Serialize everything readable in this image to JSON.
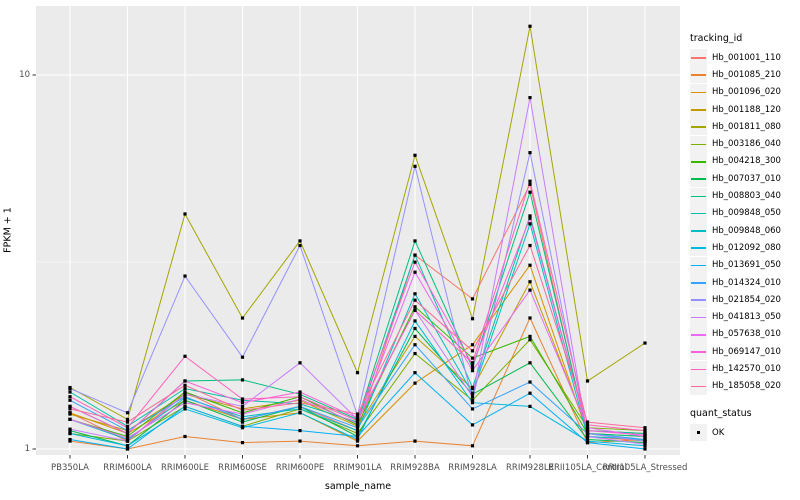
{
  "chart_data": {
    "type": "line",
    "title": "",
    "xlabel": "sample_name",
    "ylabel": "FPKM + 1",
    "yscale": "log10",
    "ylim": [
      0.96,
      15.3
    ],
    "grid": true,
    "legend_position": "right",
    "y_tick_labels": [
      "10",
      "1"
    ],
    "y_tick_values": [
      10,
      1
    ],
    "y_minor_tick_values": [
      3.1623
    ],
    "categories": [
      "PB350LA",
      "RRIM600LA",
      "RRIM600LE",
      "RRIM600SE",
      "RRIM600PE",
      "RRIM901LA",
      "RRIM928BA",
      "RRIM928LA",
      "RRIM928LE",
      "RRII105LA_Control",
      "RRII105LA_Stressed"
    ],
    "point_marker": {
      "shape": "filled-square",
      "color": "#000000",
      "size": 3.2
    },
    "series": [
      {
        "name": "Hb_001001_110",
        "color": "#F8766D",
        "values": [
          1.25,
          1.05,
          1.42,
          1.2,
          1.3,
          1.12,
          3.3,
          2.52,
          5.1,
          1.08,
          1.05
        ]
      },
      {
        "name": "Hb_001085_210",
        "color": "#EA8331",
        "values": [
          1.05,
          1.0,
          1.08,
          1.04,
          1.05,
          1.02,
          1.05,
          1.02,
          2.24,
          1.04,
          1.06
        ]
      },
      {
        "name": "Hb_001096_020",
        "color": "#D89000",
        "values": [
          1.25,
          1.1,
          1.35,
          1.2,
          1.25,
          1.05,
          1.5,
          1.9,
          3.1,
          1.1,
          1.08
        ]
      },
      {
        "name": "Hb_001188_120",
        "color": "#C09B00",
        "values": [
          1.24,
          1.12,
          1.4,
          1.28,
          1.35,
          1.15,
          2.0,
          1.45,
          2.8,
          1.12,
          1.1
        ]
      },
      {
        "name": "Hb_001811_080",
        "color": "#A3A500",
        "values": [
          1.46,
          1.2,
          4.25,
          2.24,
          3.6,
          1.6,
          6.1,
          2.23,
          13.5,
          1.52,
          1.92
        ]
      },
      {
        "name": "Hb_003186_040",
        "color": "#7CAE00",
        "values": [
          1.1,
          1.05,
          1.3,
          1.15,
          1.28,
          1.1,
          1.8,
          1.35,
          1.96,
          1.14,
          1.12
        ]
      },
      {
        "name": "Hb_004218_300",
        "color": "#39B600",
        "values": [
          1.2,
          1.08,
          1.42,
          1.25,
          1.38,
          1.16,
          2.4,
          1.75,
          2.0,
          1.1,
          1.05
        ]
      },
      {
        "name": "Hb_007037_010",
        "color": "#00BB4E",
        "values": [
          1.12,
          1.02,
          1.35,
          1.18,
          1.3,
          1.08,
          2.1,
          1.4,
          1.7,
          1.06,
          1.04
        ]
      },
      {
        "name": "Hb_008803_040",
        "color": "#00BF7D",
        "values": [
          1.3,
          1.1,
          1.52,
          1.53,
          1.4,
          1.2,
          3.6,
          1.65,
          4.86,
          1.1,
          1.08
        ]
      },
      {
        "name": "Hb_009848_050",
        "color": "#00C1A3",
        "values": [
          1.42,
          1.15,
          1.45,
          1.35,
          1.32,
          1.18,
          3.3,
          1.46,
          4.2,
          1.12,
          1.1
        ]
      },
      {
        "name": "Hb_009848_060",
        "color": "#00BFC4",
        "values": [
          1.2,
          1.06,
          1.37,
          1.22,
          1.28,
          1.12,
          2.6,
          1.41,
          4.0,
          1.08,
          1.06
        ]
      },
      {
        "name": "Hb_012092_080",
        "color": "#00BAE0",
        "values": [
          1.1,
          1.02,
          1.28,
          1.14,
          1.25,
          1.06,
          2.2,
          1.33,
          1.3,
          1.05,
          1.02
        ]
      },
      {
        "name": "Hb_013691_050",
        "color": "#00B0F6",
        "values": [
          1.06,
          1.0,
          1.3,
          1.15,
          1.12,
          1.08,
          1.6,
          1.16,
          1.41,
          1.04,
          1.0
        ]
      },
      {
        "name": "Hb_014324_010",
        "color": "#35A2FF",
        "values": [
          1.35,
          1.12,
          1.38,
          1.2,
          1.3,
          1.14,
          1.9,
          1.28,
          1.51,
          1.1,
          1.06
        ]
      },
      {
        "name": "Hb_021854_020",
        "color": "#9590FF",
        "values": [
          1.45,
          1.25,
          2.9,
          1.76,
          3.5,
          1.23,
          5.7,
          1.35,
          6.2,
          1.1,
          1.05
        ]
      },
      {
        "name": "Hb_041813_050",
        "color": "#C77CFF",
        "values": [
          1.13,
          1.05,
          1.4,
          1.3,
          1.7,
          1.2,
          2.35,
          1.38,
          8.7,
          1.08,
          1.03
        ]
      },
      {
        "name": "Hb_057638_010",
        "color": "#E76BF3",
        "values": [
          1.2,
          1.07,
          1.33,
          1.24,
          1.36,
          1.17,
          2.97,
          1.62,
          2.66,
          1.14,
          1.08
        ]
      },
      {
        "name": "Hb_069147_010",
        "color": "#FA62DB",
        "values": [
          1.3,
          1.1,
          1.52,
          1.33,
          1.42,
          1.21,
          3.16,
          1.68,
          4.14,
          1.12,
          1.09
        ]
      },
      {
        "name": "Hb_142570_010",
        "color": "#FF62BC",
        "values": [
          1.38,
          1.14,
          1.77,
          1.36,
          1.38,
          1.19,
          2.35,
          1.7,
          5.2,
          1.16,
          1.12
        ]
      },
      {
        "name": "Hb_185058_020",
        "color": "#FF6A98",
        "values": [
          1.28,
          1.18,
          1.48,
          1.27,
          1.33,
          1.24,
          2.5,
          1.83,
          3.5,
          1.18,
          1.14
        ]
      }
    ]
  },
  "legend": {
    "tracking_title": "tracking_id",
    "quant_title": "quant_status",
    "quant_ok_label": "OK"
  },
  "colors": {
    "panel_background": "#EBEBEB",
    "gridline": "#FFFFFF",
    "axis_text": "#4D4D4D",
    "tick_mark": "#333333",
    "point": "#000000",
    "legend_key_background": "#F2F2F2"
  }
}
